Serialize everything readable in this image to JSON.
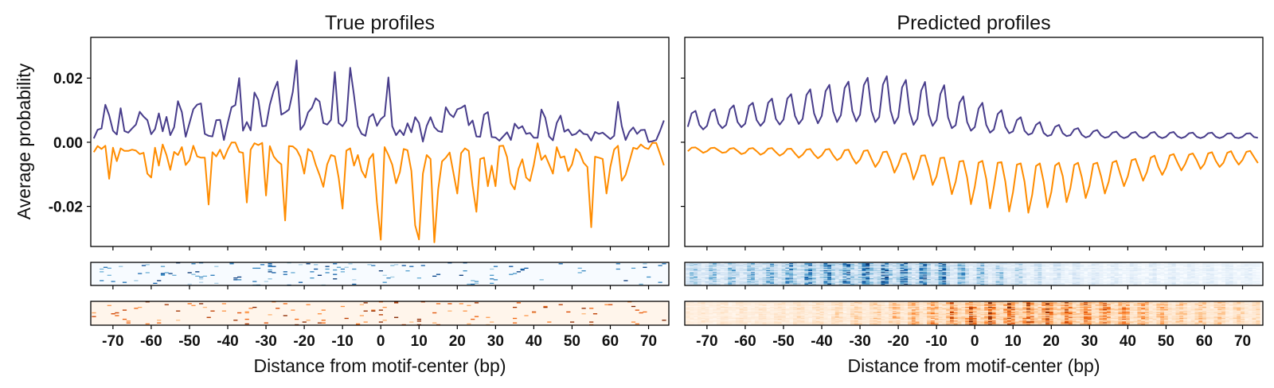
{
  "figure": {
    "ylabel": "Average probability",
    "left_title": "True profiles",
    "right_title": "Predicted profiles",
    "xlabel": "Distance from motif-center (bp)"
  },
  "chart_data": [
    {
      "type": "line",
      "title": "True profiles",
      "xlabel": "Distance from motif-center (bp)",
      "ylabel": "Average probability",
      "xlim": [
        -75.8,
        75.3
      ],
      "ylim": [
        -0.0325,
        0.0327
      ],
      "x_start": -75,
      "x_step": 1,
      "xticks": [
        -70,
        -60,
        -50,
        -40,
        -30,
        -20,
        -10,
        0,
        10,
        20,
        30,
        40,
        50,
        60,
        70
      ],
      "xtick_labels": [
        "-70",
        "-60",
        "-50",
        "-40",
        "-30",
        "-20",
        "-10",
        "0",
        "10",
        "20",
        "30",
        "40",
        "50",
        "60",
        "70"
      ],
      "yticks": [
        0.02,
        0.0,
        -0.02
      ],
      "ytick_labels": [
        "0.02",
        "0.00",
        "-0.02"
      ],
      "show_ytick_labels": true,
      "grid": false,
      "legend": "none",
      "series": [
        {
          "color": "#483D8B",
          "values": [
            0.0012,
            0.0039,
            0.0043,
            0.0117,
            0.0084,
            0.0036,
            0.0024,
            0.0106,
            0.0035,
            0.003,
            0.0043,
            0.0055,
            0.0095,
            0.008,
            0.0069,
            0.0025,
            0.0041,
            0.009,
            0.0034,
            0.0079,
            0.0022,
            0.0047,
            0.0128,
            0.0094,
            0.0017,
            0.006,
            0.0103,
            0.0117,
            0.0121,
            0.0026,
            0.002,
            0.0018,
            0.0069,
            0.007,
            0.0007,
            0.006,
            0.0109,
            0.0116,
            0.02,
            0.0036,
            0.0063,
            0.0037,
            0.0155,
            0.0132,
            0.005,
            0.0051,
            0.0117,
            0.016,
            0.0189,
            0.0086,
            0.0093,
            0.0102,
            0.0157,
            0.0255,
            0.0039,
            0.0055,
            0.0093,
            0.0107,
            0.0137,
            0.0127,
            0.006,
            0.0055,
            0.007,
            0.0219,
            0.006,
            0.005,
            0.0068,
            0.0232,
            0.0146,
            0.005,
            0.0026,
            0.002,
            0.0078,
            0.0088,
            0.0051,
            0.0072,
            0.0082,
            0.0202,
            0.005,
            0.0022,
            0.0038,
            0.0022,
            0.0059,
            0.0031,
            0.0078,
            0.006,
            0.0002,
            0.0051,
            0.0078,
            0.0047,
            0.0035,
            0.0032,
            0.0109,
            0.0088,
            0.0078,
            0.0103,
            0.0107,
            0.0115,
            0.0053,
            0.0068,
            0.0018,
            0.0017,
            0.0086,
            0.0094,
            0.0016,
            0.0015,
            0.0005,
            0.0018,
            0.0031,
            0.0007,
            0.0058,
            0.0043,
            0.005,
            0.0026,
            0.0029,
            0.0014,
            0.0014,
            0.0102,
            0.0076,
            0.0018,
            0.0006,
            0.006,
            0.0083,
            0.0033,
            0.004,
            0.0022,
            0.0026,
            0.0038,
            0.0026,
            0.0024,
            0.0005,
            0.0032,
            0.0026,
            0.003,
            0.002,
            0.001,
            0.002,
            0.0126,
            0.005,
            0.0007,
            0.0033,
            0.0046,
            0.0026,
            0.0038,
            0.0039,
            0.0001,
            0.0003,
            0.0007,
            0.0035,
            0.0068
          ]
        },
        {
          "color": "#FF8C00",
          "values": [
            -0.0031,
            -0.0012,
            -0.0021,
            -0.0011,
            -0.0114,
            -0.0017,
            -0.0059,
            -0.0019,
            -0.0027,
            -0.0027,
            -0.0023,
            -0.0026,
            -0.0037,
            -0.0033,
            -0.0098,
            -0.011,
            -0.0017,
            -0.0073,
            -0.0007,
            -0.004,
            -0.0086,
            -0.003,
            -0.004,
            -0.0015,
            -0.0071,
            -0.0056,
            -0.0011,
            -0.0044,
            -0.0048,
            -0.0048,
            -0.0194,
            -0.0031,
            -0.0044,
            -0.0023,
            -0.0052,
            -0.0023,
            -0.0001,
            -0.0001,
            -0.003,
            -0.0033,
            -0.0188,
            -0.0023,
            -0.0003,
            -0.0009,
            -0.0002,
            -0.0166,
            -0.0012,
            -0.0044,
            -0.0059,
            -0.0069,
            -0.0244,
            -0.0012,
            -0.0013,
            -0.0023,
            -0.0046,
            -0.0098,
            -0.0021,
            -0.003,
            -0.007,
            -0.0102,
            -0.0139,
            -0.0069,
            -0.004,
            -0.0044,
            -0.011,
            -0.0207,
            -0.0026,
            -0.0019,
            -0.0073,
            -0.004,
            -0.0089,
            -0.011,
            -0.0052,
            -0.0036,
            -0.0188,
            -0.0304,
            -0.0015,
            -0.004,
            -0.007,
            -0.0128,
            -0.0093,
            -0.0021,
            -0.0025,
            -0.0089,
            -0.0259,
            -0.0303,
            -0.0098,
            -0.004,
            -0.0052,
            -0.0312,
            -0.0147,
            -0.006,
            -0.0048,
            -0.0032,
            -0.0096,
            -0.016,
            -0.0034,
            -0.0019,
            -0.0027,
            -0.0135,
            -0.0217,
            -0.0052,
            -0.0048,
            -0.0137,
            -0.0073,
            -0.0137,
            -0.0012,
            -0.0011,
            -0.0046,
            -0.0128,
            -0.0147,
            -0.0083,
            -0.0053,
            -0.011,
            -0.0121,
            -0.007,
            -0.0003,
            -0.0055,
            -0.0041,
            -0.0069,
            -0.0098,
            -0.0015,
            -0.0048,
            -0.0044,
            -0.009,
            -0.0069,
            -0.0021,
            -0.0033,
            -0.0064,
            -0.0077,
            -0.0265,
            -0.0045,
            -0.0048,
            -0.0052,
            -0.016,
            -0.0077,
            -0.0023,
            -0.0011,
            -0.012,
            -0.0102,
            -0.006,
            -0.0017,
            -0.0021,
            -0.0007,
            -0.0017,
            -0.0021,
            -0.0002,
            -0.0002,
            -0.0036,
            -0.0072
          ]
        }
      ],
      "heatmaps": [
        {
          "cmap": "Blues",
          "source_series": 0,
          "style": "sparse"
        },
        {
          "cmap": "Oranges",
          "source_series": 1,
          "style": "sparse"
        }
      ]
    },
    {
      "type": "line",
      "title": "Predicted profiles",
      "xlabel": "Distance from motif-center (bp)",
      "ylabel": "",
      "xlim": [
        -75.8,
        75.3
      ],
      "ylim": [
        -0.0325,
        0.0327
      ],
      "x_start": -75,
      "x_step": 1,
      "xticks": [
        -70,
        -60,
        -50,
        -40,
        -30,
        -20,
        -10,
        0,
        10,
        20,
        30,
        40,
        50,
        60,
        70
      ],
      "xtick_labels": [
        "-70",
        "-60",
        "-50",
        "-40",
        "-30",
        "-20",
        "-10",
        "0",
        "10",
        "20",
        "30",
        "40",
        "50",
        "60",
        "70"
      ],
      "yticks": [
        0.02,
        0.0,
        -0.02
      ],
      "ytick_labels": [
        "0.02",
        "0.00",
        "-0.02"
      ],
      "show_ytick_labels": false,
      "grid": false,
      "legend": "none",
      "series": [
        {
          "color": "#483D8B",
          "values": [
            0.0048,
            0.009,
            0.0098,
            0.0054,
            0.004,
            0.0051,
            0.0094,
            0.0103,
            0.0058,
            0.0044,
            0.0054,
            0.0103,
            0.0115,
            0.0063,
            0.0047,
            0.0058,
            0.0113,
            0.0123,
            0.0069,
            0.0051,
            0.0065,
            0.0123,
            0.0136,
            0.0073,
            0.0055,
            0.0071,
            0.0136,
            0.015,
            0.0082,
            0.0057,
            0.0073,
            0.0147,
            0.0165,
            0.009,
            0.0059,
            0.0082,
            0.0159,
            0.0179,
            0.0096,
            0.0063,
            0.0084,
            0.0169,
            0.0189,
            0.0098,
            0.0065,
            0.0086,
            0.0178,
            0.0201,
            0.0098,
            0.0063,
            0.0078,
            0.018,
            0.0206,
            0.0098,
            0.0058,
            0.0078,
            0.0171,
            0.0194,
            0.0093,
            0.0054,
            0.0073,
            0.0161,
            0.0188,
            0.0086,
            0.0051,
            0.0069,
            0.015,
            0.0178,
            0.0078,
            0.0044,
            0.0053,
            0.0123,
            0.0143,
            0.0063,
            0.0036,
            0.0047,
            0.0105,
            0.0123,
            0.0054,
            0.003,
            0.004,
            0.0088,
            0.01,
            0.0048,
            0.0028,
            0.0034,
            0.0069,
            0.0078,
            0.0036,
            0.0023,
            0.0028,
            0.0054,
            0.0063,
            0.0029,
            0.0019,
            0.0023,
            0.0048,
            0.0054,
            0.0028,
            0.0019,
            0.0022,
            0.004,
            0.0044,
            0.0023,
            0.0015,
            0.0019,
            0.0034,
            0.0038,
            0.0021,
            0.0014,
            0.0017,
            0.003,
            0.0033,
            0.0019,
            0.0013,
            0.0017,
            0.0029,
            0.0032,
            0.0018,
            0.0013,
            0.0017,
            0.0029,
            0.0032,
            0.0018,
            0.0013,
            0.0017,
            0.0029,
            0.0032,
            0.0018,
            0.0013,
            0.0017,
            0.0028,
            0.003,
            0.0017,
            0.0013,
            0.0017,
            0.0028,
            0.003,
            0.0017,
            0.0013,
            0.0017,
            0.0027,
            0.0028,
            0.0015,
            0.0013,
            0.0017,
            0.0027,
            0.0028,
            0.0016,
            0.0014
          ]
        },
        {
          "color": "#FF8C00",
          "values": [
            -0.0028,
            -0.0017,
            -0.0016,
            -0.0024,
            -0.0033,
            -0.0028,
            -0.0018,
            -0.0017,
            -0.0025,
            -0.0033,
            -0.0031,
            -0.002,
            -0.0018,
            -0.0027,
            -0.0037,
            -0.0033,
            -0.002,
            -0.0018,
            -0.0028,
            -0.0039,
            -0.0033,
            -0.002,
            -0.0018,
            -0.0031,
            -0.0042,
            -0.0035,
            -0.0021,
            -0.002,
            -0.0035,
            -0.0048,
            -0.0039,
            -0.0023,
            -0.0021,
            -0.0038,
            -0.005,
            -0.0041,
            -0.0023,
            -0.0021,
            -0.0041,
            -0.0056,
            -0.0048,
            -0.0025,
            -0.0023,
            -0.0048,
            -0.0067,
            -0.0054,
            -0.0027,
            -0.0025,
            -0.0052,
            -0.0077,
            -0.006,
            -0.0031,
            -0.0029,
            -0.0058,
            -0.0095,
            -0.0071,
            -0.0037,
            -0.0035,
            -0.0068,
            -0.0116,
            -0.0085,
            -0.0042,
            -0.0041,
            -0.0081,
            -0.0133,
            -0.0106,
            -0.0049,
            -0.0048,
            -0.0102,
            -0.0162,
            -0.0123,
            -0.006,
            -0.0058,
            -0.011,
            -0.0193,
            -0.0139,
            -0.0064,
            -0.0058,
            -0.0114,
            -0.0206,
            -0.0139,
            -0.0064,
            -0.0062,
            -0.0123,
            -0.0216,
            -0.0156,
            -0.007,
            -0.0066,
            -0.0123,
            -0.022,
            -0.0164,
            -0.0074,
            -0.0066,
            -0.0123,
            -0.0203,
            -0.0156,
            -0.0073,
            -0.0064,
            -0.0106,
            -0.0187,
            -0.0143,
            -0.0071,
            -0.0064,
            -0.011,
            -0.0174,
            -0.0135,
            -0.0068,
            -0.0064,
            -0.0106,
            -0.016,
            -0.0123,
            -0.0063,
            -0.0058,
            -0.0098,
            -0.0137,
            -0.0106,
            -0.0056,
            -0.0052,
            -0.0085,
            -0.012,
            -0.0093,
            -0.0048,
            -0.0042,
            -0.0077,
            -0.0102,
            -0.0079,
            -0.0041,
            -0.0037,
            -0.0064,
            -0.0088,
            -0.0068,
            -0.0039,
            -0.0035,
            -0.0056,
            -0.0083,
            -0.0068,
            -0.0035,
            -0.0031,
            -0.0058,
            -0.0077,
            -0.0064,
            -0.0033,
            -0.0028,
            -0.0052,
            -0.007,
            -0.0055,
            -0.003,
            -0.0027,
            -0.0046,
            -0.0065
          ]
        }
      ],
      "heatmaps": [
        {
          "cmap": "Blues",
          "source_series": 0,
          "style": "dense"
        },
        {
          "cmap": "Oranges",
          "source_series": 1,
          "style": "dense"
        }
      ]
    }
  ]
}
